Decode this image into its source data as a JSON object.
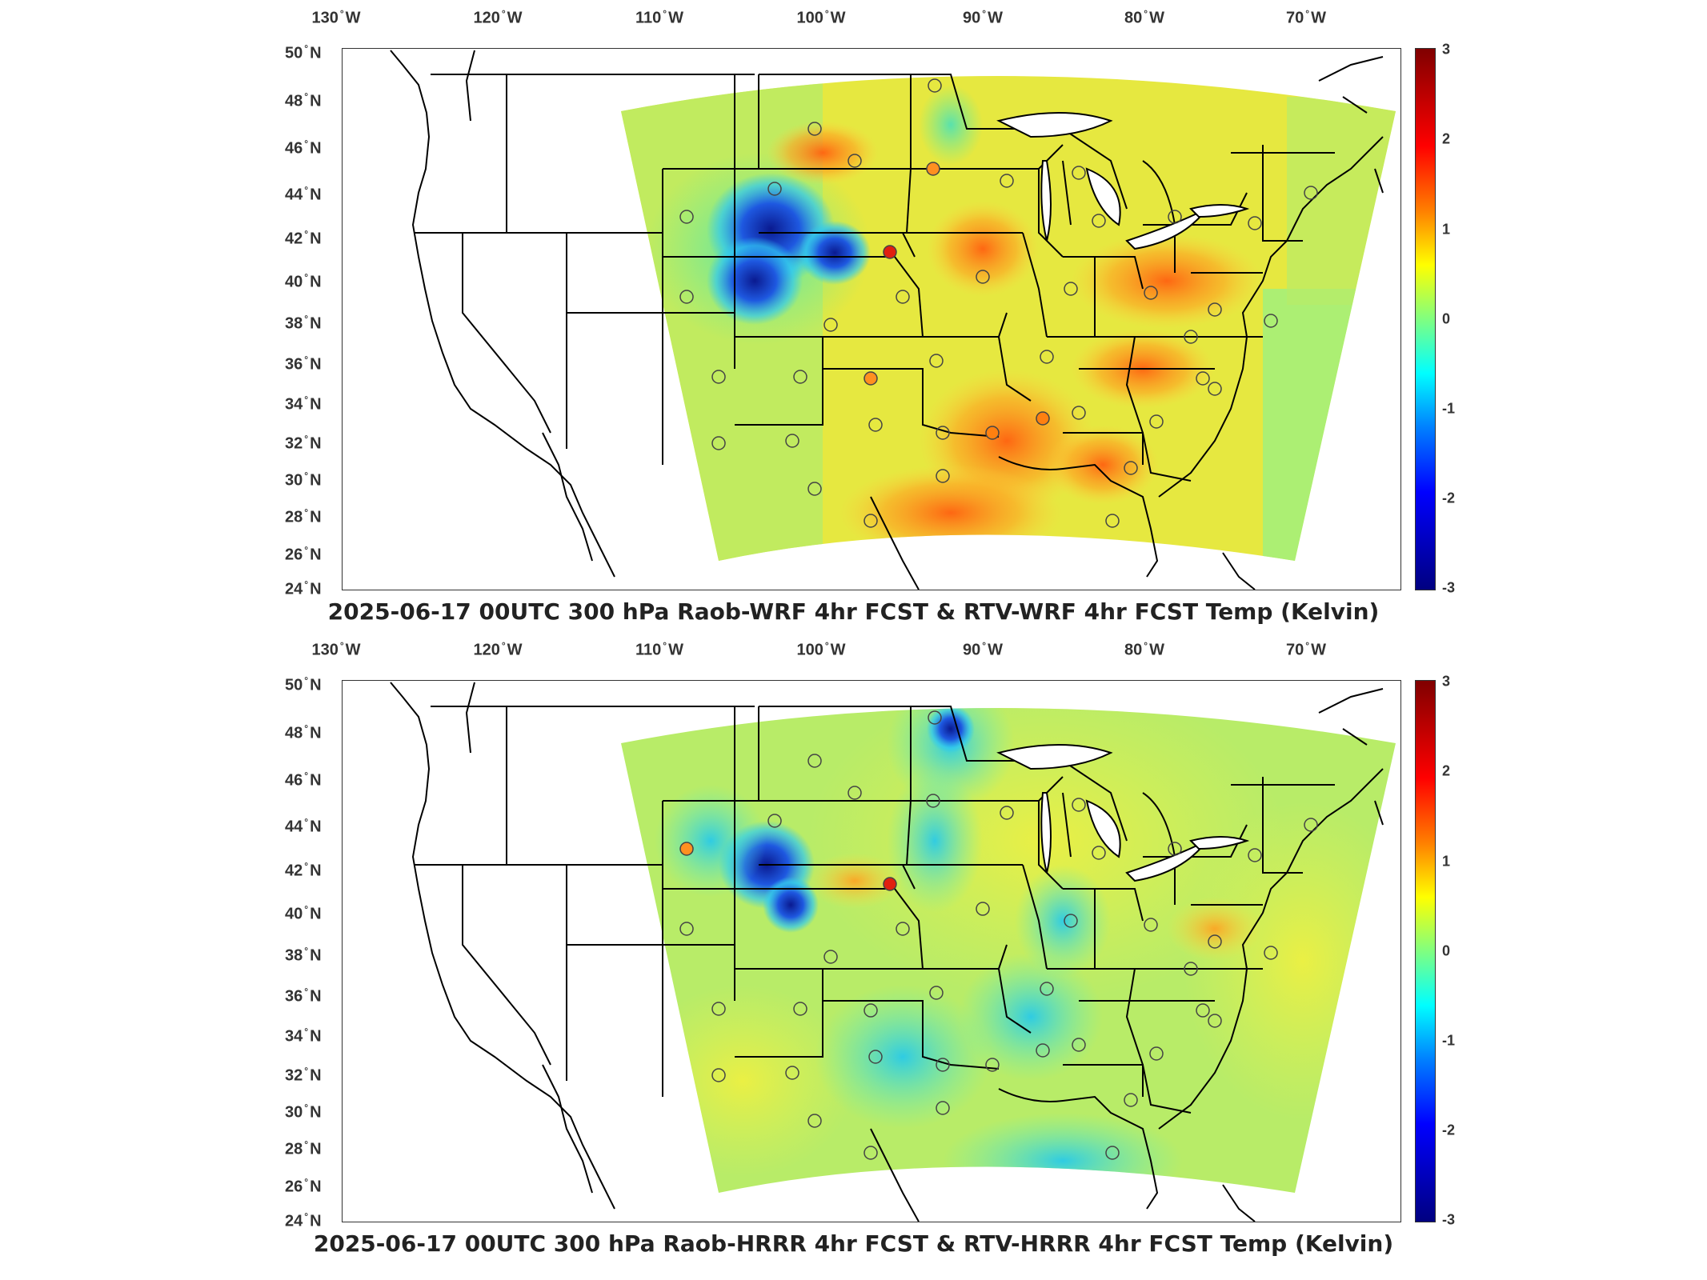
{
  "panels": [
    {
      "title": "2025-06-17 00UTC 300 hPa Raob-WRF 4hr FCST & RTV-WRF 4hr FCST Temp (Kelvin)",
      "variant": "wrf"
    },
    {
      "title": "2025-06-17 00UTC 300 hPa Raob-HRRR 4hr FCST & RTV-HRRR 4hr FCST Temp (Kelvin)",
      "variant": "hrrr"
    }
  ],
  "lon_labels": [
    "130",
    "120",
    "110",
    "100",
    "90",
    "80",
    "70"
  ],
  "lon_hemisphere": "W",
  "lat_labels": [
    "50",
    "48",
    "46",
    "44",
    "42",
    "40",
    "38",
    "36",
    "34",
    "32",
    "30",
    "28",
    "26",
    "24"
  ],
  "lat_hemisphere": "N",
  "colorbar": {
    "ticks": [
      "3",
      "2",
      "1",
      "0",
      "-1",
      "-2",
      "-3"
    ],
    "min": -3,
    "max": 3,
    "colormap": "jet"
  },
  "colors": {
    "wrf_base": "#e6e840",
    "hrrr_base": "#b8ec68",
    "cold": "#1030c0",
    "warm": "#ff7010",
    "outline": "#000000"
  }
}
